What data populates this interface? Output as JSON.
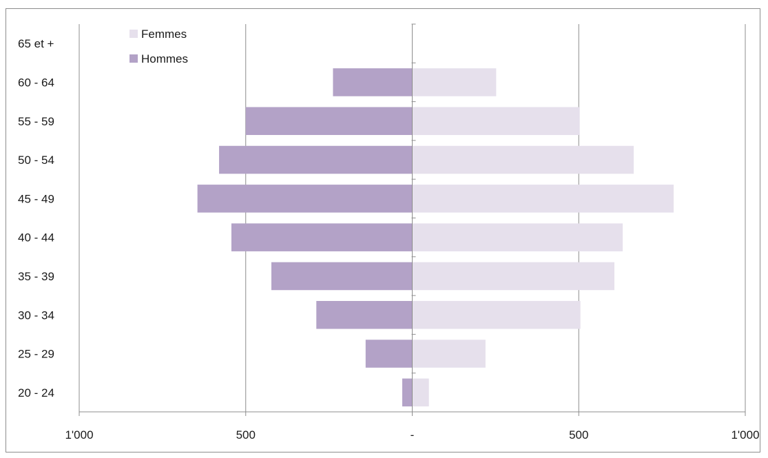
{
  "chart_data": {
    "type": "bar",
    "orientation": "horizontal",
    "subtype": "population-pyramid",
    "categories": [
      "20 - 24",
      "25 - 29",
      "30 - 34",
      "35 - 39",
      "40 - 44",
      "45 - 49",
      "50 - 54",
      "55 - 59",
      "60 - 64",
      "65 et +"
    ],
    "series": [
      {
        "name": "Femmes",
        "color": "#e6e0ec",
        "values": [
          50,
          220,
          505,
          607,
          632,
          785,
          665,
          503,
          252,
          0
        ]
      },
      {
        "name": "Hommes",
        "color": "#b3a2c7",
        "values": [
          30,
          140,
          288,
          423,
          543,
          645,
          580,
          500,
          238,
          0
        ]
      }
    ],
    "x_axis": {
      "range": [
        -1000,
        1000
      ],
      "ticks": [
        -1000,
        -500,
        0,
        500,
        1000
      ],
      "tick_labels": [
        "1'000",
        "500",
        "-",
        "500",
        "1'000"
      ]
    },
    "grid": "vertical",
    "legend": {
      "position": "top-left",
      "entries": [
        "Femmes",
        "Hommes"
      ]
    },
    "title": "",
    "xlabel": "",
    "ylabel": ""
  }
}
